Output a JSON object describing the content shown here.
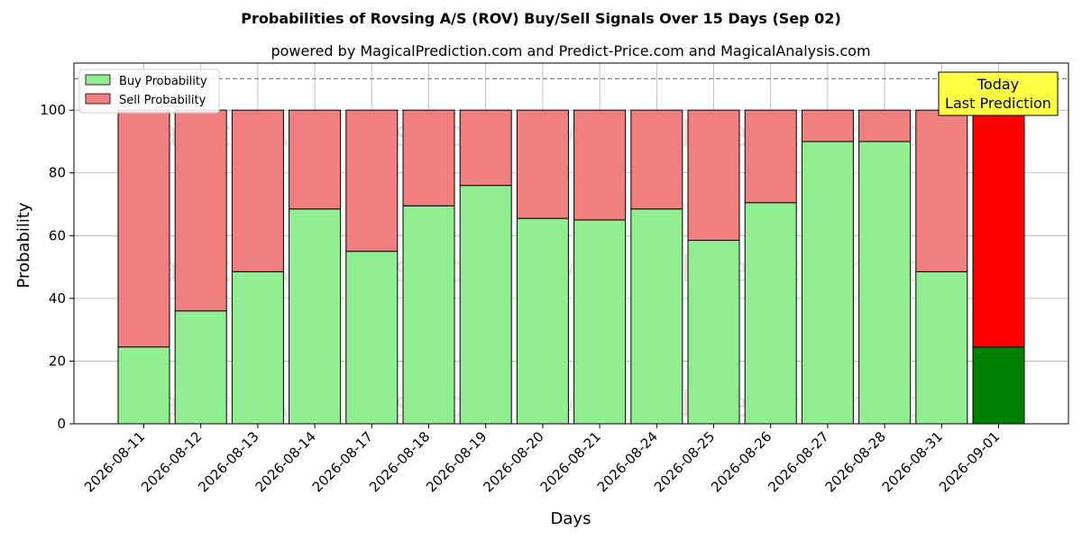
{
  "chart_data": {
    "type": "bar",
    "stacked": true,
    "title": "Probabilities of Rovsing A/S (ROV) Buy/Sell Signals Over 15 Days (Sep 02)",
    "subtitle": "powered by MagicalPrediction.com and Predict-Price.com and MagicalAnalysis.com",
    "xlabel": "Days",
    "ylabel": "Probability",
    "ylim": [
      0,
      115
    ],
    "yticks": [
      0,
      20,
      40,
      60,
      80,
      100
    ],
    "grid": true,
    "legend_position": "top-left",
    "threshold_line": 110,
    "categories": [
      "2026-08-11",
      "2026-08-12",
      "2026-08-13",
      "2026-08-14",
      "2026-08-17",
      "2026-08-18",
      "2026-08-19",
      "2026-08-20",
      "2026-08-21",
      "2026-08-24",
      "2026-08-25",
      "2026-08-26",
      "2026-08-27",
      "2026-08-28",
      "2026-08-31",
      "2026-09-01"
    ],
    "series": [
      {
        "name": "Buy Probability",
        "color": "#90ee90",
        "values": [
          24.5,
          36,
          48.5,
          68.5,
          55,
          69.5,
          76,
          65.5,
          65,
          68.5,
          58.5,
          70.5,
          90,
          90,
          48.5,
          24.5
        ]
      },
      {
        "name": "Sell Probability",
        "color": "#f08080",
        "values": [
          75.5,
          64,
          51.5,
          31.5,
          45,
          30.5,
          24,
          34.5,
          35,
          31.5,
          41.5,
          29.5,
          10,
          10,
          51.5,
          75.5
        ]
      }
    ],
    "highlight": {
      "index": 15,
      "buy_color": "#008000",
      "sell_color": "#ff0000"
    },
    "annotation": {
      "lines": [
        "Today",
        "Last Prediction"
      ],
      "background": "#ffff44"
    },
    "watermarks": [
      "MagicalAnalysis.com",
      "MagicalPrediction.com"
    ]
  }
}
